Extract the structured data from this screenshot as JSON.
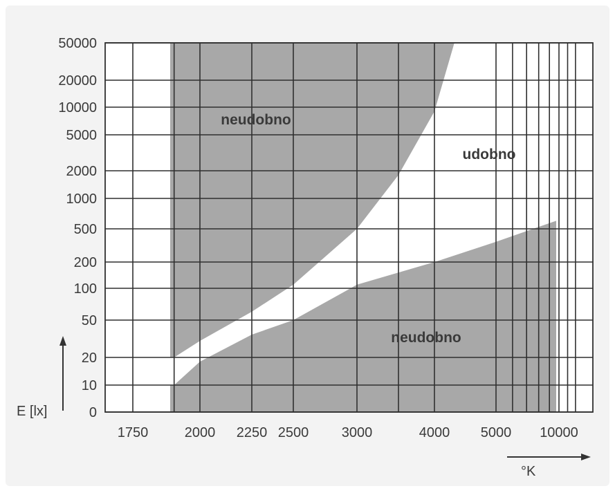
{
  "chart_data": {
    "type": "area",
    "title": "",
    "ylabel": "E [lx]",
    "xlabel": "°K",
    "x_ticks": [
      "1750",
      "2000",
      "2250",
      "2500",
      "3000",
      "4000",
      "5000",
      "10000"
    ],
    "y_ticks": [
      "50000",
      "20000",
      "10000",
      "5000",
      "2000",
      "1000",
      "500",
      "200",
      "100",
      "50",
      "20",
      "10",
      "0"
    ],
    "regions": [
      {
        "name": "neudobno",
        "position": "upper-left",
        "boundary": [
          {
            "x": "1900",
            "y": 20
          },
          {
            "x": "2000",
            "y": 30
          },
          {
            "x": "2250",
            "y": 60
          },
          {
            "x": "2500",
            "y": 110
          },
          {
            "x": "3000",
            "y": 500
          },
          {
            "x": "3500",
            "y": 1800
          },
          {
            "x": "4000",
            "y": 9000
          },
          {
            "x": "4300",
            "y": 50000
          }
        ]
      },
      {
        "name": "udobno",
        "position": "middle-right"
      },
      {
        "name": "neudobno",
        "position": "lower",
        "boundary": [
          {
            "x": "1900",
            "y": 10
          },
          {
            "x": "2000",
            "y": 18
          },
          {
            "x": "2250",
            "y": 35
          },
          {
            "x": "2500",
            "y": 50
          },
          {
            "x": "3000",
            "y": 110
          },
          {
            "x": "4000",
            "y": 200
          },
          {
            "x": "5000",
            "y": 350
          },
          {
            "x": "10000",
            "y": 600
          }
        ]
      }
    ],
    "grid": true,
    "colors": {
      "uncomfortable": "#a8a8a8",
      "comfortable": "#ffffff",
      "grid": "#2f2f2f",
      "background": "#f3f3f3"
    }
  }
}
